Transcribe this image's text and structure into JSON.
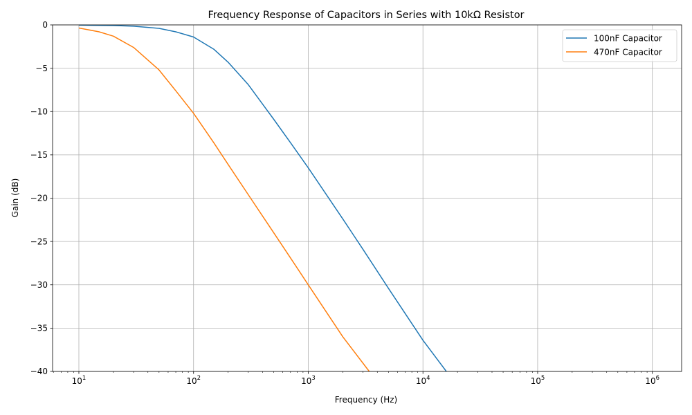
{
  "chart_data": {
    "type": "line",
    "title": "Frequency Response of Capacitors in Series with 10kΩ Resistor",
    "xlabel": "Frequency (Hz)",
    "ylabel": "Gain (dB)",
    "xscale": "log",
    "xlim": [
      5.9,
      1800000
    ],
    "ylim": [
      -40,
      0
    ],
    "grid": true,
    "legend_position": "top-right",
    "x_ticks": [
      {
        "value": 10,
        "base": "10",
        "exponent": "1"
      },
      {
        "value": 100,
        "base": "10",
        "exponent": "2"
      },
      {
        "value": 1000,
        "base": "10",
        "exponent": "3"
      },
      {
        "value": 10000,
        "base": "10",
        "exponent": "4"
      },
      {
        "value": 100000,
        "base": "10",
        "exponent": "5"
      },
      {
        "value": 1000000,
        "base": "10",
        "exponent": "6"
      }
    ],
    "y_ticks": [
      {
        "value": 0,
        "label": "0"
      },
      {
        "value": -5,
        "label": "−5"
      },
      {
        "value": -10,
        "label": "−10"
      },
      {
        "value": -15,
        "label": "−15"
      },
      {
        "value": -20,
        "label": "−20"
      },
      {
        "value": -25,
        "label": "−25"
      },
      {
        "value": -30,
        "label": "−30"
      },
      {
        "value": -35,
        "label": "−35"
      },
      {
        "value": -40,
        "label": "−40"
      }
    ],
    "series": [
      {
        "name": "100nF Capacitor",
        "color": "#1f77b4",
        "x": [
          10,
          20,
          30,
          50,
          70,
          100,
          150,
          200,
          300,
          500,
          700,
          1000,
          2000,
          3000,
          5000,
          10000,
          16000
        ],
        "y": [
          -0.02,
          -0.07,
          -0.15,
          -0.4,
          -0.8,
          -1.4,
          -2.8,
          -4.3,
          -6.9,
          -10.9,
          -13.6,
          -16.5,
          -22.4,
          -25.9,
          -30.4,
          -36.4,
          -40.0
        ]
      },
      {
        "name": "470nF Capacitor",
        "color": "#ff7f0e",
        "x": [
          10,
          15,
          20,
          30,
          50,
          70,
          100,
          150,
          200,
          300,
          500,
          700,
          1000,
          2000,
          3400
        ],
        "y": [
          -0.36,
          -0.8,
          -1.3,
          -2.6,
          -5.2,
          -7.6,
          -10.2,
          -13.6,
          -16.1,
          -19.6,
          -24.0,
          -26.9,
          -30.0,
          -36.0,
          -40.0
        ]
      }
    ]
  }
}
